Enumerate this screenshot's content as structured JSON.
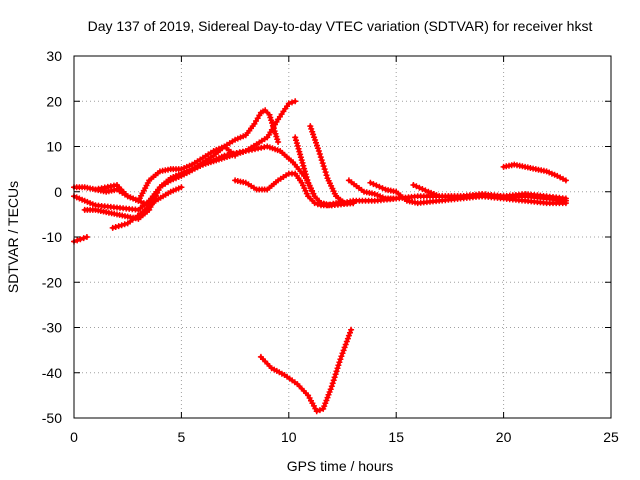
{
  "chart_data": {
    "type": "line",
    "title": "Day 137 of 2019, Sidereal Day-to-day VTEC variation (SDTVAR) for receiver hkst",
    "xlabel": "GPS time / hours",
    "ylabel": "SDTVAR / TECUs",
    "xlim": [
      0,
      25
    ],
    "ylim": [
      -50,
      30
    ],
    "xticks": [
      0,
      5,
      10,
      15,
      20,
      25
    ],
    "yticks": [
      -50,
      -40,
      -30,
      -20,
      -10,
      0,
      10,
      20,
      30
    ],
    "grid": true,
    "marker": "plus",
    "color": "#ff0000",
    "series": [
      {
        "name": "arc-neg-start",
        "x": [
          0.0,
          0.3,
          0.6
        ],
        "y": [
          -11,
          -10.5,
          -10
        ]
      },
      {
        "name": "arc-a",
        "x": [
          0.0,
          0.5,
          1.0,
          1.5,
          2.0,
          2.5,
          3.0,
          3.5,
          4.0,
          4.5,
          5.0,
          5.5,
          6.0,
          6.5,
          7.0,
          7.5,
          8.0,
          8.4,
          8.7,
          8.9,
          9.1,
          9.3,
          9.5
        ],
        "y": [
          1,
          1,
          0.5,
          0,
          0.5,
          -1,
          -2,
          -3,
          1,
          3,
          4,
          5,
          6.5,
          8,
          10,
          11.5,
          12.5,
          15,
          17.5,
          18,
          17,
          14,
          11
        ]
      },
      {
        "name": "arc-b",
        "x": [
          0.0,
          1.0,
          2.0,
          3.0,
          3.5,
          4.0,
          4.5,
          5.0,
          6.0,
          7.0,
          8.0,
          9.0,
          9.5,
          10.0,
          10.3
        ],
        "y": [
          -1,
          -3,
          -3.5,
          -4,
          -2,
          1,
          2.5,
          3.5,
          6,
          8,
          9,
          12,
          16,
          19.5,
          20
        ]
      },
      {
        "name": "arc-c",
        "x": [
          0.5,
          1.0,
          1.5,
          2.0,
          2.5,
          3.0,
          3.5,
          4.0,
          4.5,
          5.0,
          6.0,
          7.0,
          8.0,
          9.0,
          9.6,
          10.2,
          10.8,
          11.2,
          11.5,
          12.0,
          13.0
        ],
        "y": [
          -4,
          -4,
          -4.5,
          -5,
          -5.5,
          -6,
          -4,
          1,
          3,
          4,
          6,
          7.5,
          9,
          10,
          9,
          6.5,
          3,
          -1,
          -2.5,
          -3,
          -2.5
        ]
      },
      {
        "name": "arc-d",
        "x": [
          1.0,
          2.0,
          2.5,
          3.0,
          3.5,
          4.0,
          4.5,
          5.0,
          5.5,
          6.0,
          6.5,
          7.0,
          7.5
        ],
        "y": [
          0.5,
          1.5,
          -1,
          -2,
          2.5,
          4.5,
          5,
          5,
          6,
          7.5,
          9,
          10,
          8
        ]
      },
      {
        "name": "arc-e",
        "x": [
          1.8,
          2.5,
          3.2,
          3.8,
          4.5,
          5.0
        ],
        "y": [
          -8,
          -7,
          -4.5,
          -2,
          0,
          1
        ]
      },
      {
        "name": "arc-f",
        "x": [
          7.5,
          8.0,
          8.5,
          9.0,
          9.5,
          10.0,
          10.3,
          10.6,
          10.9,
          11.2,
          11.5,
          12.0,
          13.0,
          14.0,
          15.0
        ],
        "y": [
          2.5,
          2,
          0.5,
          0.5,
          2.5,
          4,
          4,
          2,
          -1,
          -2.5,
          -3,
          -3,
          -2,
          -2,
          -1.5
        ]
      },
      {
        "name": "arc-g",
        "x": [
          10.3,
          10.6,
          10.9,
          11.2,
          11.5,
          11.8,
          12.2,
          13.0
        ],
        "y": [
          12,
          7,
          2,
          -1,
          -2.5,
          -3,
          -2.5,
          -2.5
        ]
      },
      {
        "name": "arc-h",
        "x": [
          11.0,
          11.4,
          11.8,
          12.2,
          12.6,
          13.0
        ],
        "y": [
          14.5,
          9,
          3,
          -1,
          -2.5,
          -2.5
        ]
      },
      {
        "name": "arc-neg-deep",
        "x": [
          8.7,
          9.2,
          9.8,
          10.4,
          10.9,
          11.3,
          11.6,
          12.0,
          12.4,
          12.9
        ],
        "y": [
          -36.5,
          -39,
          -40.5,
          -42.5,
          -45,
          -48.5,
          -48,
          -43,
          -37,
          -30.5
        ]
      },
      {
        "name": "arc-tail-1",
        "x": [
          12.8,
          13.5,
          14.0,
          14.5,
          15.0,
          16.0,
          17.0,
          18.0,
          19.0,
          20.0,
          21.0,
          22.0,
          22.9
        ],
        "y": [
          2.5,
          0,
          -0.5,
          -1.5,
          -1.5,
          -1,
          -1,
          -1,
          -0.5,
          -1,
          -1,
          -1.5,
          -2
        ]
      },
      {
        "name": "arc-tail-2",
        "x": [
          13.8,
          14.5,
          15.0,
          15.5,
          16.0,
          17.0,
          18.0,
          19.0,
          20.0,
          21.0,
          22.0,
          22.9
        ],
        "y": [
          2,
          0.5,
          0,
          -2,
          -2.5,
          -2,
          -1.5,
          -1,
          -1.5,
          -2,
          -2.5,
          -2.5
        ]
      },
      {
        "name": "arc-tail-3",
        "x": [
          15.8,
          16.5,
          17.0,
          18.0,
          19.0,
          20.0,
          21.0,
          22.0,
          22.9
        ],
        "y": [
          1.5,
          0,
          -1,
          -1,
          -1,
          -1,
          -0.5,
          -1,
          -1.5
        ]
      },
      {
        "name": "arc-late",
        "x": [
          20.0,
          20.5,
          21.0,
          21.5,
          22.0,
          22.5,
          22.9
        ],
        "y": [
          5.5,
          6,
          5.5,
          5,
          4.5,
          3.5,
          2.5
        ]
      }
    ]
  }
}
